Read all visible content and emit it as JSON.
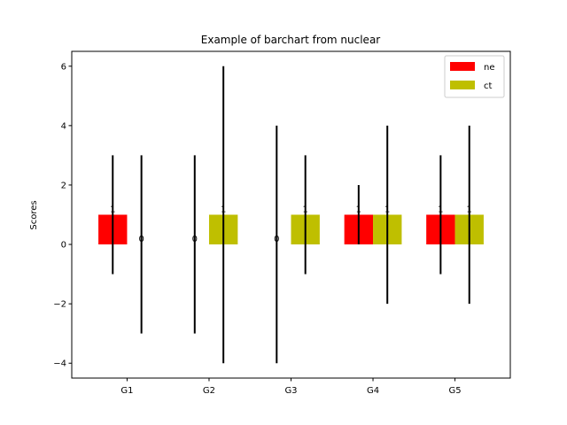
{
  "chart_data": {
    "type": "bar",
    "title": "Example of barchart from nuclear",
    "xlabel": "",
    "ylabel": "Scores",
    "categories": [
      "G1",
      "G2",
      "G3",
      "G4",
      "G5"
    ],
    "ylim": [
      -4.5,
      6.5
    ],
    "yticks": [
      -4,
      -2,
      0,
      2,
      4,
      6
    ],
    "ytick_labels": [
      "−4",
      "−2",
      "0",
      "2",
      "4",
      "6"
    ],
    "series": [
      {
        "name": "ne",
        "color": "#ff0000",
        "values": [
          1,
          0,
          0,
          1,
          1
        ],
        "error_low": [
          -1,
          -3,
          -4,
          0,
          -1
        ],
        "error_high": [
          3,
          3,
          4,
          2,
          3
        ],
        "labels": [
          "1",
          "0",
          "0",
          "1",
          "1"
        ]
      },
      {
        "name": "ct",
        "color": "#bfbf00",
        "values": [
          0,
          1,
          1,
          1,
          1
        ],
        "error_low": [
          -3,
          -4,
          -1,
          -2,
          -2
        ],
        "error_high": [
          3,
          6,
          3,
          4,
          4
        ],
        "labels": [
          "0",
          "1",
          "1",
          "1",
          "1"
        ]
      }
    ],
    "legend": {
      "position": "top-right"
    },
    "grid": false
  }
}
